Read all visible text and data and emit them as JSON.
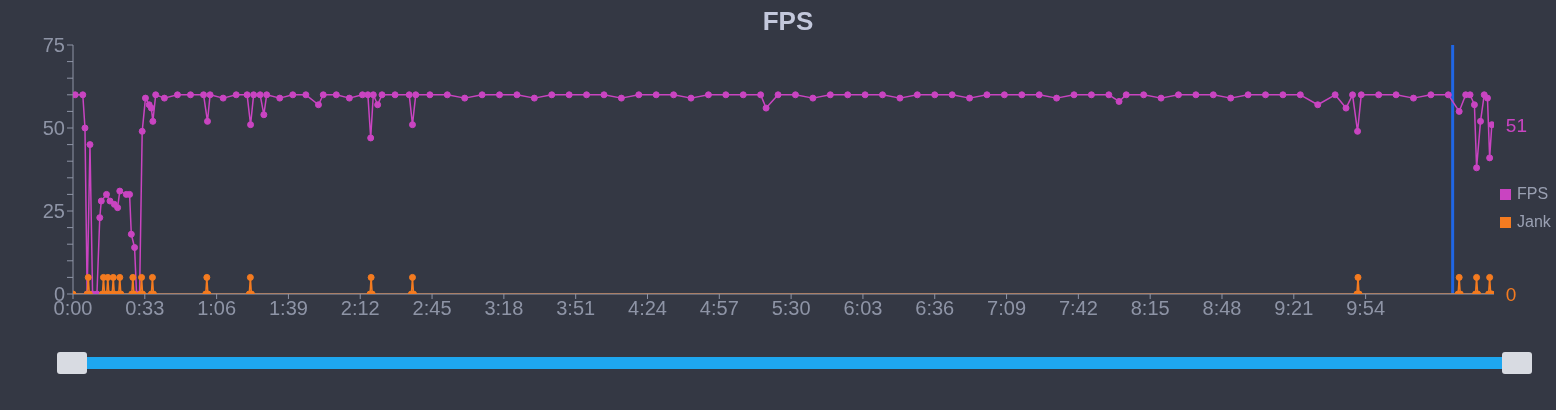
{
  "chart_data": {
    "type": "line",
    "title": "FPS",
    "xlim": [
      0,
      653
    ],
    "xticks": [
      {
        "value": 0,
        "label": "0:00"
      },
      {
        "value": 33,
        "label": "0:33"
      },
      {
        "value": 66,
        "label": "1:06"
      },
      {
        "value": 99,
        "label": "1:39"
      },
      {
        "value": 132,
        "label": "2:12"
      },
      {
        "value": 165,
        "label": "2:45"
      },
      {
        "value": 198,
        "label": "3:18"
      },
      {
        "value": 231,
        "label": "3:51"
      },
      {
        "value": 264,
        "label": "4:24"
      },
      {
        "value": 297,
        "label": "4:57"
      },
      {
        "value": 330,
        "label": "5:30"
      },
      {
        "value": 363,
        "label": "6:03"
      },
      {
        "value": 396,
        "label": "6:36"
      },
      {
        "value": 429,
        "label": "7:09"
      },
      {
        "value": 462,
        "label": "7:42"
      },
      {
        "value": 495,
        "label": "8:15"
      },
      {
        "value": 528,
        "label": "8:48"
      },
      {
        "value": 561,
        "label": "9:21"
      },
      {
        "value": 594,
        "label": "9:54"
      }
    ],
    "ylim": [
      0,
      75
    ],
    "yticks": [
      0,
      {
        "value": 5,
        "label": null
      },
      {
        "value": 10,
        "label": null
      },
      {
        "value": 15,
        "label": null
      },
      {
        "value": 20,
        "label": null
      },
      25,
      {
        "value": 30,
        "label": null
      },
      {
        "value": 35,
        "label": null
      },
      {
        "value": 40,
        "label": null
      },
      {
        "value": 45,
        "label": null
      },
      50,
      {
        "value": 55,
        "label": null
      },
      {
        "value": 60,
        "label": null
      },
      {
        "value": 65,
        "label": null
      },
      {
        "value": 70,
        "label": null
      },
      75
    ],
    "grid": false,
    "legend": "right",
    "marker": "circle",
    "line_style": "solid",
    "ref_lines": [
      {
        "axis": "x",
        "value": 634,
        "color": "#1f66e5"
      }
    ],
    "series": [
      {
        "name": "FPS",
        "color": "#c944c1",
        "x": [
          1,
          4.5,
          5.5,
          6.5,
          7.8,
          9,
          11,
          12.3,
          13,
          15.4,
          17,
          19,
          20.5,
          21.5,
          24.5,
          26,
          26.8,
          28.3,
          29.2,
          30.6,
          31.8,
          33.3,
          35,
          36,
          36.7,
          38,
          42,
          48,
          54,
          60,
          61.8,
          63,
          69,
          75,
          80,
          81.6,
          83,
          86,
          87.7,
          89,
          95,
          101,
          107,
          112.8,
          115,
          121,
          127,
          133,
          135.5,
          136.8,
          138,
          140,
          142,
          148,
          154.5,
          156,
          157.5,
          164,
          172,
          180,
          188,
          196,
          204,
          212,
          220,
          228,
          236,
          244,
          252,
          260,
          268,
          276,
          284,
          292,
          300,
          308,
          316,
          318.5,
          324,
          332,
          340,
          348,
          356,
          364,
          372,
          380,
          388,
          396,
          404,
          412,
          420,
          428,
          436,
          444,
          452,
          460,
          468,
          476,
          480.7,
          484,
          492,
          500,
          508,
          516,
          524,
          532,
          540,
          548,
          556,
          564,
          572,
          580,
          585,
          588,
          590.3,
          592,
          600,
          608,
          616,
          624,
          632,
          637,
          640,
          642,
          644,
          645,
          646.8,
          648.5,
          650,
          651,
          652
        ],
        "values": [
          60,
          60,
          50,
          0,
          45,
          0,
          0,
          23,
          28,
          30,
          28,
          27,
          26,
          31,
          30,
          30,
          18,
          14,
          0,
          0,
          49,
          59,
          57,
          56,
          52,
          60,
          59,
          60,
          60,
          60,
          52,
          60,
          59,
          60,
          60,
          51,
          60,
          60,
          54,
          60,
          59,
          60,
          60,
          57,
          60,
          60,
          59,
          60,
          60,
          47,
          60,
          57,
          60,
          60,
          60,
          51,
          60,
          60,
          60,
          59,
          60,
          60,
          60,
          59,
          60,
          60,
          60,
          60,
          59,
          60,
          60,
          60,
          59,
          60,
          60,
          60,
          60,
          56,
          60,
          60,
          59,
          60,
          60,
          60,
          60,
          59,
          60,
          60,
          60,
          59,
          60,
          60,
          60,
          60,
          59,
          60,
          60,
          60,
          58,
          60,
          60,
          59,
          60,
          60,
          60,
          59,
          60,
          60,
          60,
          60,
          57,
          60,
          56,
          60,
          49,
          60,
          60,
          60,
          59,
          60,
          60,
          55,
          60,
          60,
          57,
          38,
          52,
          60,
          59,
          41,
          51
        ],
        "value_labels": [
          null,
          null,
          null,
          null,
          null,
          null,
          null,
          null,
          null,
          null,
          null,
          null,
          null,
          null,
          null,
          null,
          null,
          null,
          null,
          null,
          null,
          null,
          null,
          null,
          null,
          null,
          null,
          null,
          null,
          null,
          null,
          null,
          null,
          null,
          null,
          null,
          null,
          null,
          null,
          null,
          null,
          null,
          null,
          null,
          null,
          null,
          null,
          null,
          null,
          null,
          null,
          null,
          null,
          null,
          null,
          null,
          null,
          null,
          null,
          null,
          null,
          null,
          null,
          null,
          null,
          null,
          null,
          null,
          null,
          null,
          null,
          null,
          null,
          null,
          null,
          null,
          null,
          null,
          null,
          null,
          null,
          null,
          null,
          null,
          null,
          null,
          null,
          null,
          null,
          null,
          null,
          null,
          null,
          null,
          null,
          null,
          null,
          null,
          null,
          null,
          null,
          null,
          null,
          null,
          null,
          null,
          null,
          null,
          null,
          null,
          null,
          null,
          null,
          null,
          null,
          null,
          null,
          null,
          null,
          null,
          null,
          null,
          null,
          null,
          null,
          null,
          null,
          null,
          null,
          null,
          "51"
        ]
      },
      {
        "name": "Jank",
        "color": "#f47b20",
        "x": [
          0,
          6.5,
          7,
          7.5,
          13.5,
          14,
          14.5,
          15.5,
          16,
          16.5,
          18,
          18.5,
          19,
          21,
          21.5,
          22,
          27,
          27.5,
          28,
          31,
          31.5,
          32,
          36,
          36.5,
          37,
          61,
          61.5,
          62,
          81,
          81.5,
          82,
          136.5,
          137,
          137.5,
          155.5,
          156,
          156.5,
          590,
          590.5,
          591,
          636.5,
          637,
          637.5,
          644.5,
          645,
          645.5,
          650.5,
          651,
          651.5,
          652
        ],
        "values": [
          0,
          0,
          5,
          0,
          0,
          5,
          0,
          0,
          5,
          0,
          0,
          5,
          0,
          0,
          5,
          0,
          0,
          5,
          0,
          0,
          5,
          0,
          0,
          5,
          0,
          0,
          5,
          0,
          0,
          5,
          0,
          0,
          5,
          0,
          0,
          5,
          0,
          0,
          5,
          0,
          0,
          5,
          0,
          0,
          5,
          0,
          0,
          5,
          0,
          0
        ],
        "value_labels": [
          null,
          null,
          null,
          null,
          null,
          null,
          null,
          null,
          null,
          null,
          null,
          null,
          null,
          null,
          null,
          null,
          null,
          null,
          null,
          null,
          null,
          null,
          null,
          null,
          null,
          null,
          null,
          null,
          null,
          null,
          null,
          null,
          null,
          null,
          null,
          null,
          null,
          null,
          null,
          null,
          null,
          null,
          null,
          null,
          null,
          null,
          null,
          null,
          null,
          "0"
        ]
      }
    ]
  }
}
